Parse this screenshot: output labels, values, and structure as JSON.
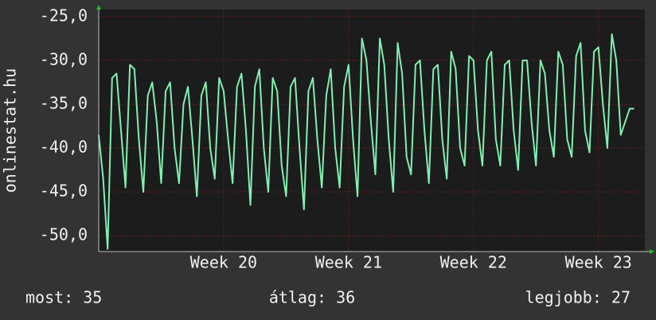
{
  "chart_data": {
    "type": "line",
    "ylabel": "onlinestat.hu",
    "color": "#80f0b0",
    "grid": true,
    "xlim": [
      0,
      30.6
    ],
    "xticks": [
      {
        "value": 7,
        "label": "Week 20"
      },
      {
        "value": 14,
        "label": "Week 21"
      },
      {
        "value": 21,
        "label": "Week 22"
      },
      {
        "value": 28,
        "label": "Week 23"
      }
    ],
    "ylim": [
      -51.8,
      -24.2
    ],
    "yticks": [
      {
        "value": -50,
        "label": "-50,0"
      },
      {
        "value": -45,
        "label": "-45,0"
      },
      {
        "value": -40,
        "label": "-40,0"
      },
      {
        "value": -35,
        "label": "-35,0"
      },
      {
        "value": -30,
        "label": "-30,0"
      },
      {
        "value": -25,
        "label": "-25,0"
      }
    ],
    "x": [
      0,
      0.25,
      0.5,
      0.75,
      1,
      1.25,
      1.5,
      1.75,
      2,
      2.25,
      2.5,
      2.75,
      3,
      3.25,
      3.5,
      3.75,
      4,
      4.25,
      4.5,
      4.75,
      5,
      5.25,
      5.5,
      5.75,
      6,
      6.25,
      6.5,
      6.75,
      7,
      7.25,
      7.5,
      7.75,
      8,
      8.25,
      8.5,
      8.75,
      9,
      9.25,
      9.5,
      9.75,
      10,
      10.25,
      10.5,
      10.75,
      11,
      11.25,
      11.5,
      11.75,
      12,
      12.25,
      12.5,
      12.75,
      13,
      13.25,
      13.5,
      13.75,
      14,
      14.25,
      14.5,
      14.75,
      15,
      15.25,
      15.5,
      15.75,
      16,
      16.25,
      16.5,
      16.75,
      17,
      17.25,
      17.5,
      17.75,
      18,
      18.25,
      18.5,
      18.75,
      19,
      19.25,
      19.5,
      19.75,
      20,
      20.25,
      20.5,
      20.75,
      21,
      21.25,
      21.5,
      21.75,
      22,
      22.25,
      22.5,
      22.75,
      23,
      23.25,
      23.5,
      23.75,
      24,
      24.25,
      24.5,
      24.75,
      25,
      25.25,
      25.5,
      25.75,
      26,
      26.25,
      26.5,
      26.75,
      27,
      27.25,
      27.5,
      27.75,
      28,
      28.25,
      28.5,
      28.75,
      29,
      29.25,
      29.5,
      29.75,
      30
    ],
    "values": [
      -38.5,
      -43.5,
      -51.5,
      -32,
      -31.5,
      -38,
      -44.5,
      -30.5,
      -31,
      -39,
      -45,
      -34,
      -32.5,
      -37,
      -44,
      -33.5,
      -32.5,
      -40,
      -44,
      -35,
      -33,
      -39,
      -45.5,
      -34,
      -32.5,
      -40,
      -43.5,
      -32,
      -33.5,
      -39,
      -44,
      -33,
      -31.5,
      -38,
      -46.5,
      -33,
      -31,
      -40,
      -45,
      -32,
      -33.5,
      -42,
      -45.5,
      -33,
      -32,
      -40,
      -47,
      -33.5,
      -32,
      -39,
      -44.5,
      -34,
      -31,
      -40,
      -44.5,
      -33,
      -30.5,
      -39,
      -45.5,
      -27.5,
      -30,
      -37,
      -43,
      -27.5,
      -30.5,
      -39,
      -45,
      -28,
      -31.5,
      -41,
      -43,
      -30.5,
      -30,
      -38,
      -44,
      -31,
      -30.5,
      -39,
      -43.5,
      -29,
      -31,
      -40,
      -42,
      -29.5,
      -30,
      -38,
      -42,
      -30,
      -29,
      -39,
      -42,
      -30.5,
      -30,
      -38,
      -42.5,
      -30,
      -30,
      -37,
      -42,
      -30,
      -31.5,
      -38,
      -41,
      -29,
      -30.5,
      -39,
      -41,
      -29.5,
      -28,
      -38,
      -40.5,
      -29,
      -28.5,
      -35,
      -40,
      -27,
      -30,
      -38.5,
      -37,
      -35.5,
      -35.5
    ],
    "footer": {
      "current": "most: 35",
      "average": "átlag: 36",
      "best": "legjobb: 27"
    }
  }
}
